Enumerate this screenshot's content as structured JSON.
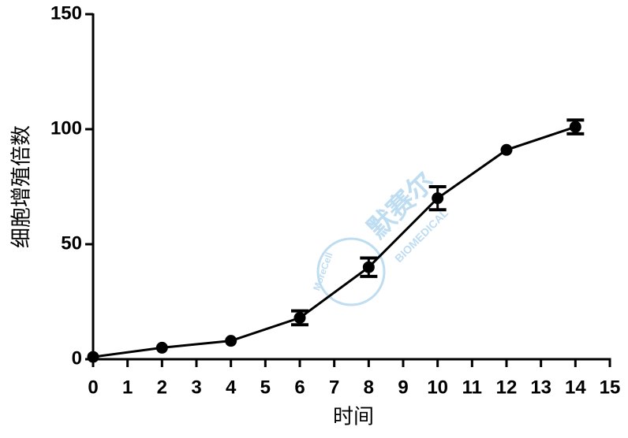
{
  "chart_data": {
    "type": "line",
    "x_label": "时间",
    "y_label": "细胞增殖倍数",
    "x": [
      0,
      2,
      4,
      6,
      8,
      10,
      12,
      14
    ],
    "series": [
      {
        "color": "#000000",
        "values": [
          1,
          5,
          8,
          18,
          40,
          70,
          91,
          101
        ],
        "errors": [
          null,
          null,
          null,
          3,
          4,
          5,
          null,
          3
        ]
      }
    ],
    "xlim": [
      0,
      15
    ],
    "xticks": [
      0,
      1,
      2,
      3,
      4,
      5,
      6,
      7,
      8,
      9,
      10,
      11,
      12,
      13,
      14,
      15
    ],
    "ylim": [
      0,
      150
    ],
    "yticks": [
      0,
      50,
      100,
      150
    ],
    "grid": false
  },
  "watermark": {
    "brand": "MoreCell",
    "name": "默赛尔",
    "sub": "BIOMEDICAL"
  }
}
